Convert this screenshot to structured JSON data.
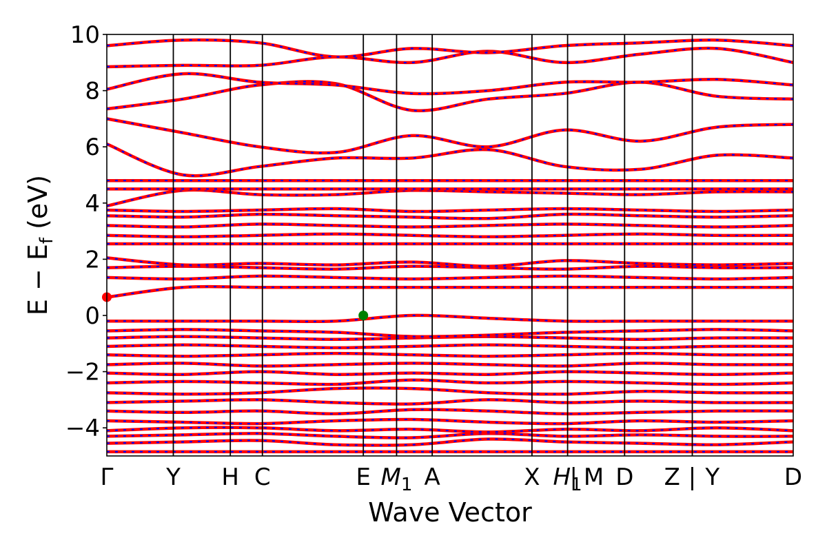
{
  "chart_data": {
    "type": "line",
    "title": "",
    "xlabel": "Wave Vector",
    "ylabel": "E − E",
    "ylabel_sub": "f",
    "ylabel_unit": " (eV)",
    "ylim": [
      -5,
      10
    ],
    "yticks": [
      -4,
      -2,
      0,
      2,
      4,
      6,
      8,
      10
    ],
    "ytick_labels": [
      "−4",
      "−2",
      "0",
      "2",
      "4",
      "6",
      "8",
      "10"
    ],
    "k_path": [
      {
        "label": "Γ",
        "k": 0.0,
        "vline": false
      },
      {
        "label": "Y",
        "k": 0.56,
        "vline": true
      },
      {
        "label": "H",
        "k": 1.04,
        "vline": true
      },
      {
        "label": "C",
        "k": 1.31,
        "vline": true
      },
      {
        "label": "E",
        "k": 2.16,
        "vline": true
      },
      {
        "label": "M",
        "sub": "1",
        "k": 2.44,
        "vline": true
      },
      {
        "label": "A",
        "k": 2.74,
        "vline": true
      },
      {
        "label": "X",
        "k": 3.58,
        "vline": true
      },
      {
        "label": "H",
        "sub": "1",
        "k": 3.88,
        "vline": true
      },
      {
        "label": "|",
        "k": 3.93,
        "vline": false
      },
      {
        "label": "M",
        "k": 4.1,
        "vline": false
      },
      {
        "label": "D",
        "k": 4.36,
        "vline": true
      },
      {
        "label": "Z",
        "k": 4.76,
        "vline": false
      },
      {
        "label": "|",
        "k": 4.93,
        "vline": true
      },
      {
        "label": "Y",
        "k": 5.1,
        "vline": false
      },
      {
        "label": "D",
        "k": 5.78,
        "vline": false
      }
    ],
    "k_range": [
      0,
      5.78
    ],
    "spin_up_color": "#ff0000",
    "spin_down_color": "#0000ff",
    "markers": [
      {
        "name": "cbm",
        "k": 0.0,
        "energy": 0.65,
        "color": "#ff0000"
      },
      {
        "name": "vbm",
        "k": 2.16,
        "energy": 0.0,
        "color": "#008000"
      }
    ],
    "bands": [
      {
        "energies": [
          -4.85,
          -4.85,
          -4.85,
          -4.85,
          -4.85,
          -4.85,
          -4.85,
          -4.85,
          -4.85,
          -4.85
        ]
      },
      {
        "energies": [
          -4.55,
          -4.5,
          -4.45,
          -4.6,
          -4.6,
          -4.4,
          -4.5,
          -4.55,
          -4.6,
          -4.5
        ]
      },
      {
        "energies": [
          -4.3,
          -4.25,
          -4.2,
          -4.3,
          -4.35,
          -4.2,
          -4.3,
          -4.25,
          -4.3,
          -4.3
        ]
      },
      {
        "energies": [
          -4.1,
          -4.0,
          -4.0,
          -4.1,
          -4.05,
          -4.15,
          -4.05,
          -4.1,
          -4.0,
          -4.1
        ]
      },
      {
        "energies": [
          -3.75,
          -3.8,
          -3.85,
          -3.75,
          -3.7,
          -3.8,
          -3.85,
          -3.75,
          -3.8,
          -3.75
        ]
      },
      {
        "energies": [
          -3.4,
          -3.45,
          -3.4,
          -3.5,
          -3.35,
          -3.4,
          -3.5,
          -3.45,
          -3.4,
          -3.4
        ]
      },
      {
        "energies": [
          -3.1,
          -3.05,
          -3.0,
          -3.1,
          -3.15,
          -3.0,
          -3.1,
          -3.05,
          -3.1,
          -3.1
        ]
      },
      {
        "energies": [
          -2.75,
          -2.8,
          -2.75,
          -2.6,
          -2.6,
          -2.75,
          -2.8,
          -2.7,
          -2.75,
          -2.75
        ]
      },
      {
        "energies": [
          -2.4,
          -2.35,
          -2.4,
          -2.45,
          -2.3,
          -2.4,
          -2.35,
          -2.4,
          -2.45,
          -2.4
        ]
      },
      {
        "energies": [
          -2.05,
          -2.1,
          -2.0,
          -2.1,
          -2.05,
          -2.1,
          -2.0,
          -2.05,
          -2.1,
          -2.05
        ]
      },
      {
        "energies": [
          -1.75,
          -1.7,
          -1.8,
          -1.75,
          -1.7,
          -1.75,
          -1.8,
          -1.7,
          -1.75,
          -1.75
        ]
      },
      {
        "energies": [
          -1.4,
          -1.45,
          -1.4,
          -1.35,
          -1.4,
          -1.45,
          -1.4,
          -1.35,
          -1.4,
          -1.4
        ]
      },
      {
        "energies": [
          -1.1,
          -1.05,
          -1.1,
          -1.15,
          -1.1,
          -1.05,
          -1.1,
          -1.15,
          -1.1,
          -1.1
        ]
      },
      {
        "energies": [
          -0.8,
          -0.75,
          -0.8,
          -0.85,
          -0.8,
          -0.75,
          -0.8,
          -0.85,
          -0.8,
          -0.8
        ]
      },
      {
        "energies": [
          -0.55,
          -0.5,
          -0.55,
          -0.6,
          -0.75,
          -0.7,
          -0.6,
          -0.55,
          -0.5,
          -0.55
        ]
      },
      {
        "energies": [
          -0.2,
          -0.2,
          -0.2,
          -0.2,
          0.0,
          -0.1,
          -0.2,
          -0.2,
          -0.2,
          -0.2
        ]
      },
      {
        "energies": [
          0.65,
          1.0,
          1.0,
          1.0,
          1.0,
          1.0,
          1.0,
          1.0,
          1.0,
          1.0
        ]
      },
      {
        "energies": [
          1.35,
          1.3,
          1.4,
          1.35,
          1.3,
          1.35,
          1.4,
          1.35,
          1.3,
          1.35
        ]
      },
      {
        "energies": [
          1.7,
          1.75,
          1.7,
          1.65,
          1.75,
          1.7,
          1.65,
          1.75,
          1.7,
          1.7
        ]
      },
      {
        "energies": [
          2.05,
          1.8,
          1.85,
          1.8,
          1.9,
          1.75,
          1.95,
          1.85,
          1.8,
          1.85
        ]
      },
      {
        "energies": [
          2.55,
          2.55,
          2.55,
          2.55,
          2.55,
          2.55,
          2.55,
          2.55,
          2.55,
          2.55
        ]
      },
      {
        "energies": [
          2.85,
          2.8,
          2.85,
          2.9,
          2.85,
          2.8,
          2.85,
          2.9,
          2.85,
          2.85
        ]
      },
      {
        "energies": [
          3.2,
          3.15,
          3.25,
          3.2,
          3.15,
          3.2,
          3.25,
          3.2,
          3.15,
          3.2
        ]
      },
      {
        "energies": [
          3.55,
          3.5,
          3.6,
          3.55,
          3.5,
          3.45,
          3.6,
          3.55,
          3.5,
          3.55
        ]
      },
      {
        "energies": [
          3.75,
          3.7,
          3.75,
          3.8,
          3.7,
          3.75,
          3.8,
          3.75,
          3.7,
          3.75
        ]
      },
      {
        "energies": [
          3.9,
          4.45,
          4.3,
          4.3,
          4.45,
          4.4,
          4.35,
          4.3,
          4.4,
          4.4
        ]
      },
      {
        "energies": [
          4.5,
          4.5,
          4.5,
          4.5,
          4.5,
          4.5,
          4.5,
          4.5,
          4.5,
          4.5
        ]
      },
      {
        "energies": [
          4.8,
          4.8,
          4.8,
          4.8,
          4.8,
          4.8,
          4.8,
          4.8,
          4.8,
          4.8
        ]
      },
      {
        "energies": [
          6.1,
          5.0,
          5.3,
          5.6,
          5.6,
          5.9,
          5.3,
          5.2,
          5.7,
          5.6
        ]
      },
      {
        "energies": [
          7.0,
          6.5,
          6.0,
          5.8,
          6.4,
          6.0,
          6.6,
          6.2,
          6.7,
          6.8
        ]
      },
      {
        "energies": [
          7.35,
          7.7,
          8.2,
          8.25,
          7.3,
          7.7,
          7.9,
          8.3,
          7.8,
          7.7
        ]
      },
      {
        "energies": [
          8.05,
          8.6,
          8.3,
          8.2,
          7.9,
          8.0,
          8.3,
          8.3,
          8.4,
          8.2
        ]
      },
      {
        "energies": [
          8.85,
          8.9,
          8.9,
          9.2,
          9.0,
          9.4,
          9.0,
          9.3,
          9.5,
          9.0
        ]
      },
      {
        "energies": [
          9.6,
          9.8,
          9.7,
          9.2,
          9.5,
          9.35,
          9.6,
          9.7,
          9.8,
          9.6
        ]
      }
    ]
  }
}
